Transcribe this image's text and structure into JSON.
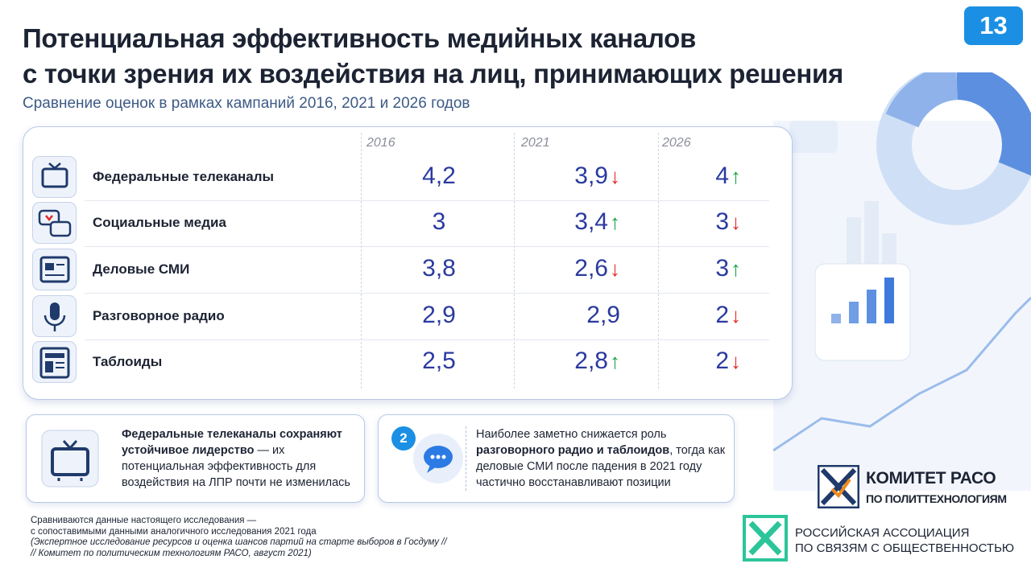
{
  "page_number": "13",
  "header": {
    "title_lines": [
      "Потенциальная эффективность медийных каналов",
      "с точки зрения их воздействия на лиц, принимающих решения"
    ],
    "subtitle": "Сравнение оценок в рамках кампаний 2016, 2021 и 2026 годов"
  },
  "table": {
    "columns": [
      "2016",
      "2021",
      "2026"
    ],
    "rows": [
      {
        "label": "Федеральные телеканалы",
        "cells": [
          {
            "value": "4,2"
          },
          {
            "value": "3,9",
            "trend": "↓"
          },
          {
            "value": "4",
            "trend": "↑"
          }
        ]
      },
      {
        "label": "Социальные медиа",
        "cells": [
          {
            "value": "3"
          },
          {
            "value": "3,4",
            "trend": "↑"
          },
          {
            "value": "3",
            "trend": "↓"
          }
        ]
      },
      {
        "label": "Деловые СМИ",
        "cells": [
          {
            "value": "3,8"
          },
          {
            "value": "2,6",
            "trend": "↓"
          },
          {
            "value": "3",
            "trend": "↑"
          }
        ]
      },
      {
        "label": "Разговорное радио",
        "cells": [
          {
            "value": "2,9"
          },
          {
            "value": "2,9"
          },
          {
            "value": "2",
            "trend": "↓"
          }
        ]
      },
      {
        "label": "Таблоиды",
        "cells": [
          {
            "value": "2,5"
          },
          {
            "value": "2,8",
            "trend": "↑"
          },
          {
            "value": "2",
            "trend": "↓"
          }
        ]
      }
    ]
  },
  "callouts": [
    {
      "segments": [
        {
          "text": "Федеральные телеканалы сохраняют устойчивое лидерство",
          "bold": true
        },
        {
          "text": " — их потенциальная эффективность для воздействия на ЛПР почти не изменилась",
          "bold": false
        }
      ]
    },
    {
      "badge": "2",
      "segments": [
        {
          "text": "Наиболее заметно снижается роль ",
          "bold": false
        },
        {
          "text": "разговорного радио и таблоидов",
          "bold": true
        },
        {
          "text": ", тогда как деловые СМИ после падения в 2021 году частично восстанавливают позиции",
          "bold": false
        }
      ]
    }
  ],
  "footnote": {
    "lines": [
      "Сравниваются данные настоящего исследования —",
      "с сопоставимыми данными аналогичного исследования 2021 года"
    ],
    "note_lines": [
      "(Экспертное исследование ресурсов и оценка шансов партий на старте выборов в Госдуму //",
      "// Комитет по политическим технологиям РАСО, август 2021)"
    ]
  },
  "logos": [
    {
      "lines": [
        "КОМИТЕТ РАСО",
        "ПО ПОЛИТТЕХНОЛОГИЯМ"
      ]
    },
    {
      "lines": [
        "РОССИЙСКАЯ АССОЦИАЦИЯ",
        "ПО СВЯЗЯМ С ОБЩЕСТВЕННОСТЬЮ"
      ]
    }
  ]
}
